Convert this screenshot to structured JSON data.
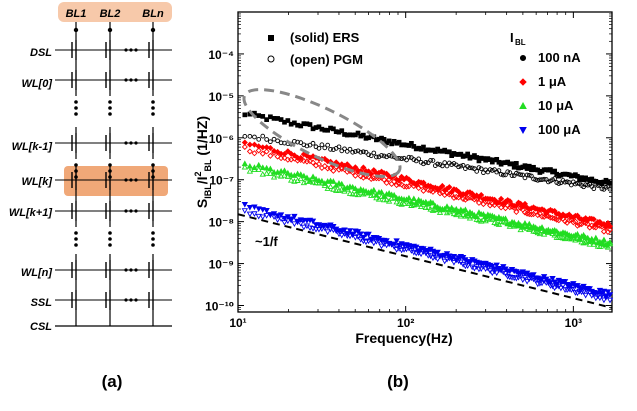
{
  "panel_a": {
    "label": "(a)",
    "bitlines": [
      "BL1",
      "BL2",
      "BLn"
    ],
    "rows": [
      "DSL",
      "WL[0]",
      "WL[k-1]",
      "WL[k]",
      "WL[k+1]",
      "WL[n]",
      "SSL",
      "CSL"
    ],
    "highlight_colors": {
      "bitline_header": "#f7c9aa",
      "selected_row": "#f0a878"
    }
  },
  "panel_b": {
    "label": "(b)",
    "legend_fill": [
      {
        "symbol": "■",
        "text": "(solid) ERS"
      },
      {
        "symbol": "○",
        "text": "(open) PGM"
      }
    ],
    "current_legend_title": "I",
    "current_legend_title_sub": "BL",
    "current_legend": [
      {
        "text": "100 nA",
        "color": "#000000",
        "marker": "circle"
      },
      {
        "text": "1 μA",
        "color": "#ff0000",
        "marker": "diamond"
      },
      {
        "text": "10 μA",
        "color": "#22dd22",
        "marker": "triangle-up"
      },
      {
        "text": "100 μA",
        "color": "#0000ee",
        "marker": "triangle-down"
      }
    ],
    "slope_label": "~1/f"
  },
  "chart_data": {
    "type": "scatter",
    "xlabel": "Frequency(Hz)",
    "ylabel": "S_IBL/I²_BL (1/HZ)",
    "xscale": "log",
    "yscale": "log",
    "xlim": [
      10,
      1700
    ],
    "ylim": [
      7e-11,
      0.001
    ],
    "x_tick_labels": [
      "10¹",
      "10²",
      "10³"
    ],
    "y_tick_labels": [
      "10⁻¹⁰",
      "10⁻⁹",
      "10⁻⁸",
      "10⁻⁷",
      "10⁻⁶",
      "10⁻⁵",
      "10⁻⁴"
    ],
    "series": [
      {
        "name": "100 nA (solid) ERS",
        "color": "#000000",
        "marker": "square",
        "x": [
          10,
          1700
        ],
        "y": [
          4e-06,
          8e-08
        ]
      },
      {
        "name": "100 nA (open) PGM",
        "color": "#000000",
        "marker": "circle-open",
        "x": [
          10,
          1700
        ],
        "y": [
          1.2e-06,
          6e-08
        ]
      },
      {
        "name": "1 μA (solid) ERS",
        "color": "#ff0000",
        "marker": "diamond",
        "x": [
          10,
          1700
        ],
        "y": [
          8e-07,
          8e-09
        ]
      },
      {
        "name": "1 μA (open) PGM",
        "color": "#ff0000",
        "marker": "diamond-open",
        "x": [
          10,
          1700
        ],
        "y": [
          6e-07,
          6e-09
        ]
      },
      {
        "name": "10 μA (solid) ERS",
        "color": "#22dd22",
        "marker": "triangle-up",
        "x": [
          10,
          1700
        ],
        "y": [
          2.5e-07,
          3e-09
        ]
      },
      {
        "name": "10 μA (open) PGM",
        "color": "#22dd22",
        "marker": "triangle-up-open",
        "x": [
          10,
          1700
        ],
        "y": [
          2e-07,
          2.5e-09
        ]
      },
      {
        "name": "100 μA (solid) ERS",
        "color": "#0000ee",
        "marker": "triangle-down",
        "x": [
          10,
          1700
        ],
        "y": [
          2.5e-08,
          1.8e-10
        ]
      },
      {
        "name": "100 μA (open) PGM",
        "color": "#0000ee",
        "marker": "triangle-down-open",
        "x": [
          10,
          1700
        ],
        "y": [
          2e-08,
          1.4e-10
        ]
      }
    ],
    "reference_line": {
      "label": "~1/f",
      "x": [
        10,
        1700
      ],
      "y": [
        1.5e-08,
        8.8e-11
      ]
    },
    "grid": false
  }
}
